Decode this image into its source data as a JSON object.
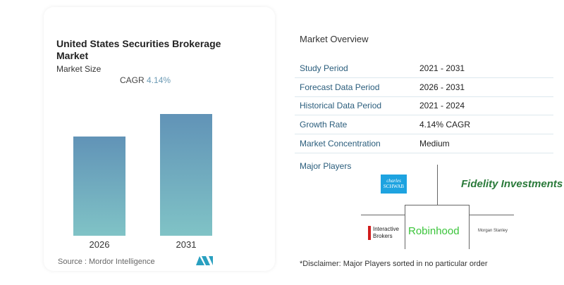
{
  "chart_data": {
    "type": "bar",
    "title": "United States Securities Brokerage Market",
    "subtitle": "Market Size",
    "annotation": {
      "label": "CAGR",
      "value": "4.14%"
    },
    "categories": [
      "2026",
      "2031"
    ],
    "values": [
      1.0,
      1.225
    ],
    "colors": {
      "bar_top": "#6193b7",
      "bar_bottom": "#80c3c6"
    },
    "grid": false,
    "source": "Source :  Mordor Intelligence"
  },
  "overview": {
    "title": "Market Overview",
    "rows": [
      {
        "label": "Study Period",
        "value": "2021 - 2031"
      },
      {
        "label": "Forecast Data Period",
        "value": "2026 - 2031"
      },
      {
        "label": "Historical Data Period",
        "value": "2021 - 2024"
      },
      {
        "label": "Growth Rate",
        "value": "4.14% CAGR"
      },
      {
        "label": "Market Concentration",
        "value": "Medium"
      }
    ],
    "major_players_label": "Major Players",
    "players": [
      "Charles Schwab",
      "Fidelity Investments",
      "Interactive Brokers",
      "Robinhood",
      "Morgan Stanley"
    ],
    "disclaimer": "*Disclaimer: Major Players sorted in no particular order"
  }
}
